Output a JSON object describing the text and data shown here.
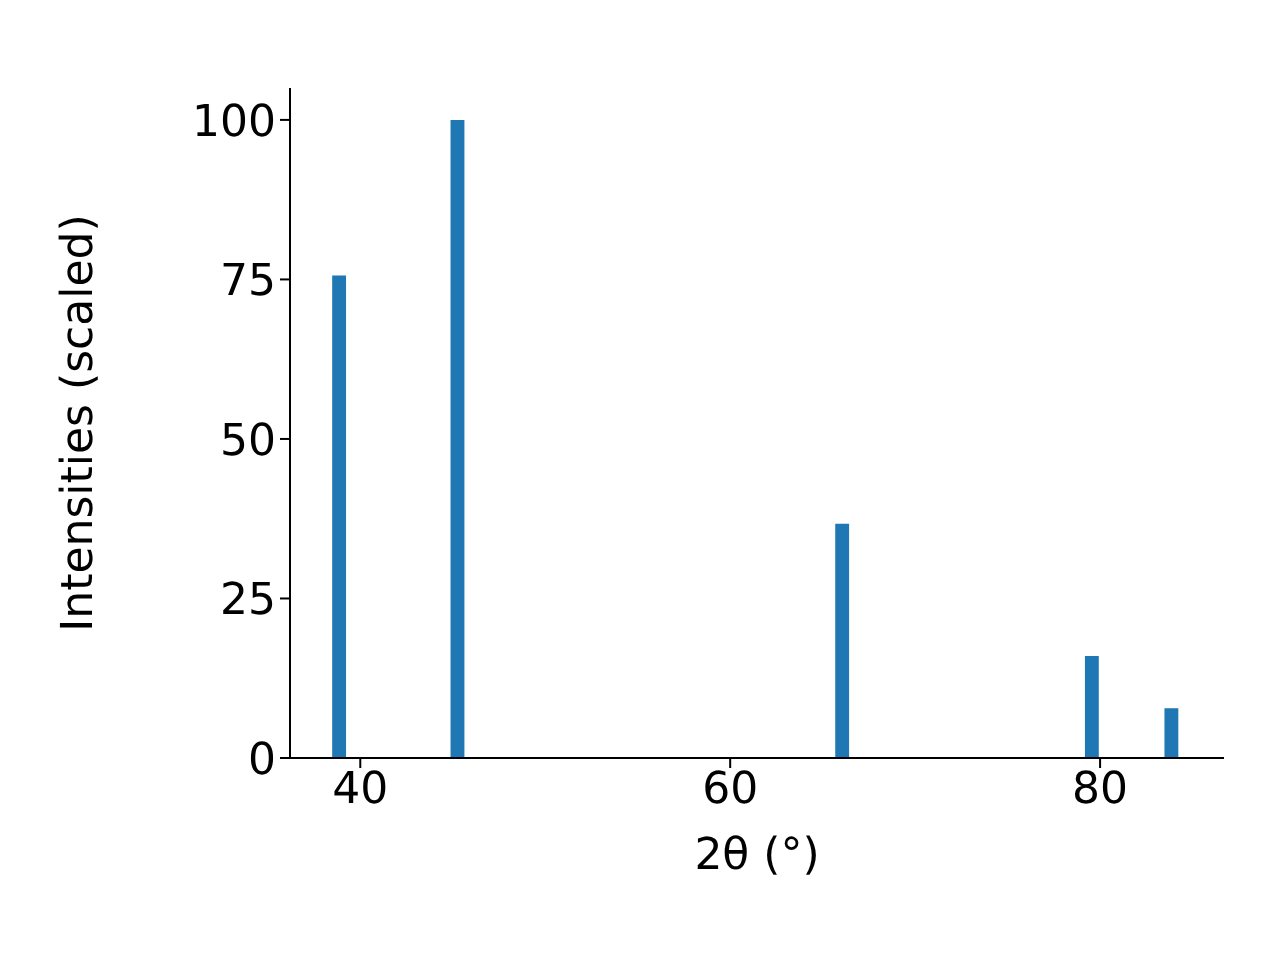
{
  "chart_data": {
    "type": "bar",
    "xlabel": "2θ (°)",
    "ylabel": "Intensities (scaled)",
    "x": [
      38.9,
      45.3,
      66.1,
      79.6,
      83.9
    ],
    "values": [
      75.6,
      100,
      36.7,
      16.0,
      7.8
    ],
    "color": "#1f77b4",
    "xlim": [
      36.2,
      86.7
    ],
    "xticks": [
      40,
      60,
      80
    ],
    "ylim": [
      0,
      105
    ],
    "yticks": [
      0,
      25,
      50,
      75,
      100
    ],
    "grid": false
  }
}
